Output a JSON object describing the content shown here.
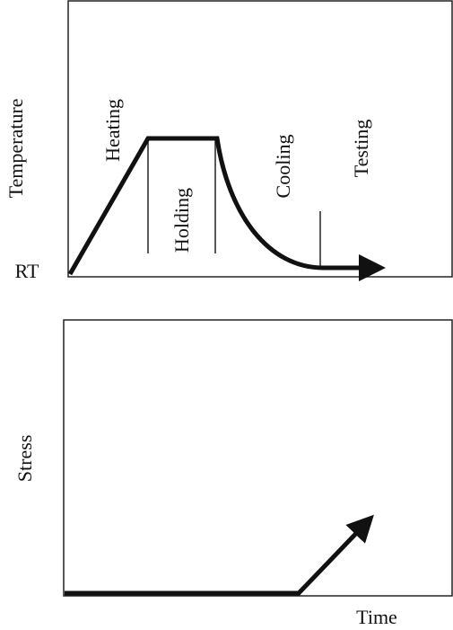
{
  "temperature_panel": {
    "axis_label": "Temperature",
    "baseline_label": "RT",
    "stages": [
      "Heating",
      "Holding",
      "Cooling",
      "Testing"
    ]
  },
  "stress_panel": {
    "axis_label": "Stress"
  },
  "x_axis_label": "Time"
}
